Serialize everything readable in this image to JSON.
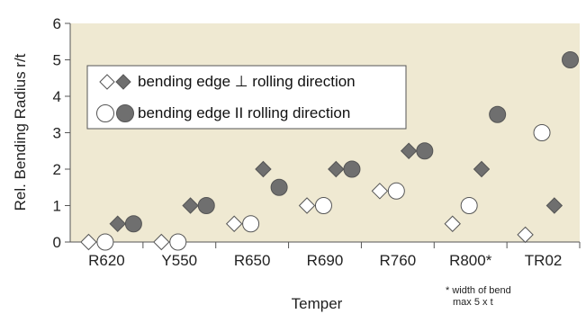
{
  "chart_data": {
    "type": "scatter",
    "title": "",
    "xlabel": "Temper",
    "ylabel": "Rel. Bending Radius r/t",
    "ylim": [
      0,
      6
    ],
    "yticks": [
      0,
      1,
      2,
      3,
      4,
      5,
      6
    ],
    "grid": false,
    "legend_position": "top-left",
    "categories": [
      "R620",
      "Y550",
      "R650",
      "R690",
      "R760",
      "R800*",
      "TR02"
    ],
    "series": [
      {
        "group": "perpendicular",
        "name": "bending edge ⊥ rolling direction",
        "marker": "diamond",
        "fill": "open",
        "values": [
          0,
          0,
          0.5,
          1,
          1.4,
          0.5,
          0.2
        ]
      },
      {
        "group": "perpendicular",
        "name": "bending edge ⊥ rolling direction",
        "marker": "diamond",
        "fill": "filled",
        "values": [
          0.5,
          1,
          2,
          2,
          2.5,
          2,
          1
        ]
      },
      {
        "group": "parallel",
        "name": "bending edge II rolling direction",
        "marker": "circle",
        "fill": "open",
        "values": [
          0,
          0,
          0.5,
          1,
          1.4,
          1,
          3
        ]
      },
      {
        "group": "parallel",
        "name": "bending edge II rolling direction",
        "marker": "circle",
        "fill": "filled",
        "values": [
          0.5,
          1,
          1.5,
          2,
          2.5,
          3.5,
          5
        ]
      }
    ],
    "legend": [
      {
        "label": "bending edge ⊥ rolling direction",
        "marker": "diamond"
      },
      {
        "label": "bending edge II rolling direction",
        "marker": "circle"
      }
    ],
    "annotation": [
      "* width of bend",
      "max 5 x t"
    ]
  },
  "colors": {
    "plot_background": "#efe9d2",
    "filled_marker": "#6f6f6f",
    "open_marker": "#ffffff",
    "marker_stroke": "#555555",
    "axis": "#555555"
  }
}
